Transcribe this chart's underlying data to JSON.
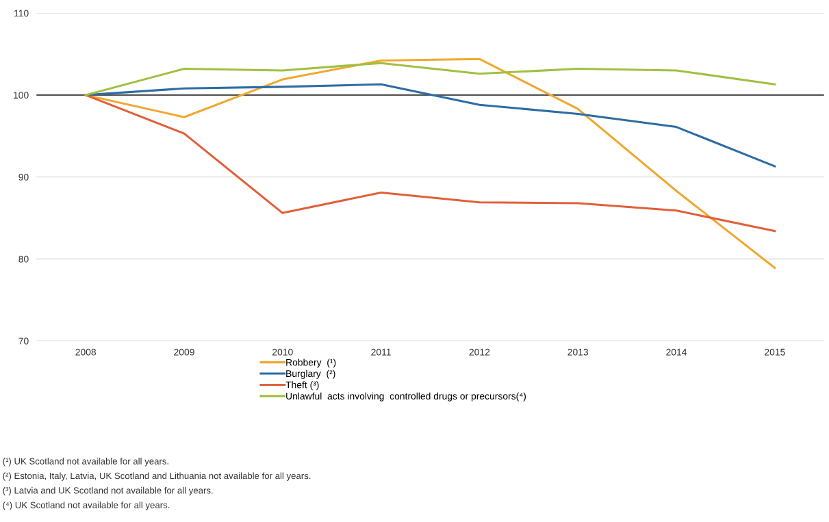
{
  "chart_data": {
    "type": "line",
    "categories": [
      "2008",
      "2009",
      "2010",
      "2011",
      "2012",
      "2013",
      "2014",
      "2015"
    ],
    "series": [
      {
        "name": "Robbery  (¹)",
        "color": "#f0a830",
        "values": [
          100,
          97.3,
          101.9,
          104.2,
          104.4,
          98.3,
          88.3,
          78.9
        ]
      },
      {
        "name": "Burglary  (²)",
        "color": "#2e6ca4",
        "values": [
          100,
          100.8,
          101.0,
          101.3,
          98.8,
          97.7,
          96.1,
          91.3
        ]
      },
      {
        "name": "Theft (³)",
        "color": "#e0603a",
        "values": [
          100,
          95.3,
          85.6,
          88.1,
          86.9,
          86.8,
          85.9,
          83.4
        ]
      },
      {
        "name": "Unlawful  acts involving  controlled drugs or precursors(⁴)",
        "color": "#a0c040",
        "values": [
          100,
          103.2,
          103.0,
          103.9,
          102.6,
          103.2,
          103.0,
          101.3
        ]
      }
    ],
    "ylim": [
      70,
      110
    ],
    "yticks": [
      70,
      80,
      90,
      100,
      110
    ],
    "ref_lines": [
      {
        "axis": "y",
        "value": 100,
        "color": "#555555"
      }
    ],
    "grid": "y",
    "legend": "bottom",
    "marker": "none",
    "line_style": "solid",
    "annotations": [
      "(¹) UK Scotland not available for all years.",
      "(²) Estonia, Italy, Latvia, UK Scotland and Lithuania not available for all years.",
      "(³) Latvia and UK Scotland not available for all years.",
      "(⁴) UK Scotland not available for all years."
    ]
  }
}
